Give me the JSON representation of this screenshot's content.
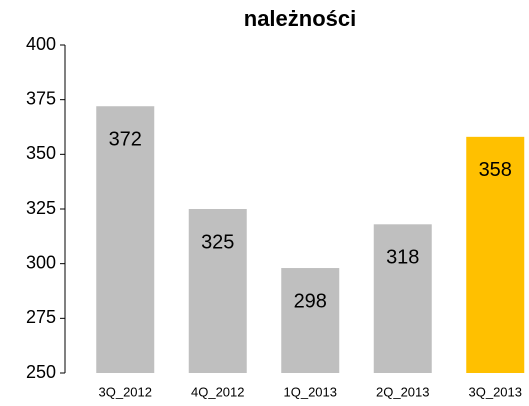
{
  "chart_data": {
    "type": "bar",
    "title": "należności",
    "categories": [
      "3Q_2012",
      "4Q_2012",
      "1Q_2013",
      "2Q_2013",
      "3Q_2013"
    ],
    "values": [
      372,
      325,
      298,
      318,
      358
    ],
    "colors": [
      "#bfbfbf",
      "#bfbfbf",
      "#bfbfbf",
      "#bfbfbf",
      "#ffc000"
    ],
    "ylim": [
      250,
      400
    ],
    "yticks": [
      250,
      275,
      300,
      325,
      350,
      375,
      400
    ],
    "grid": false
  }
}
